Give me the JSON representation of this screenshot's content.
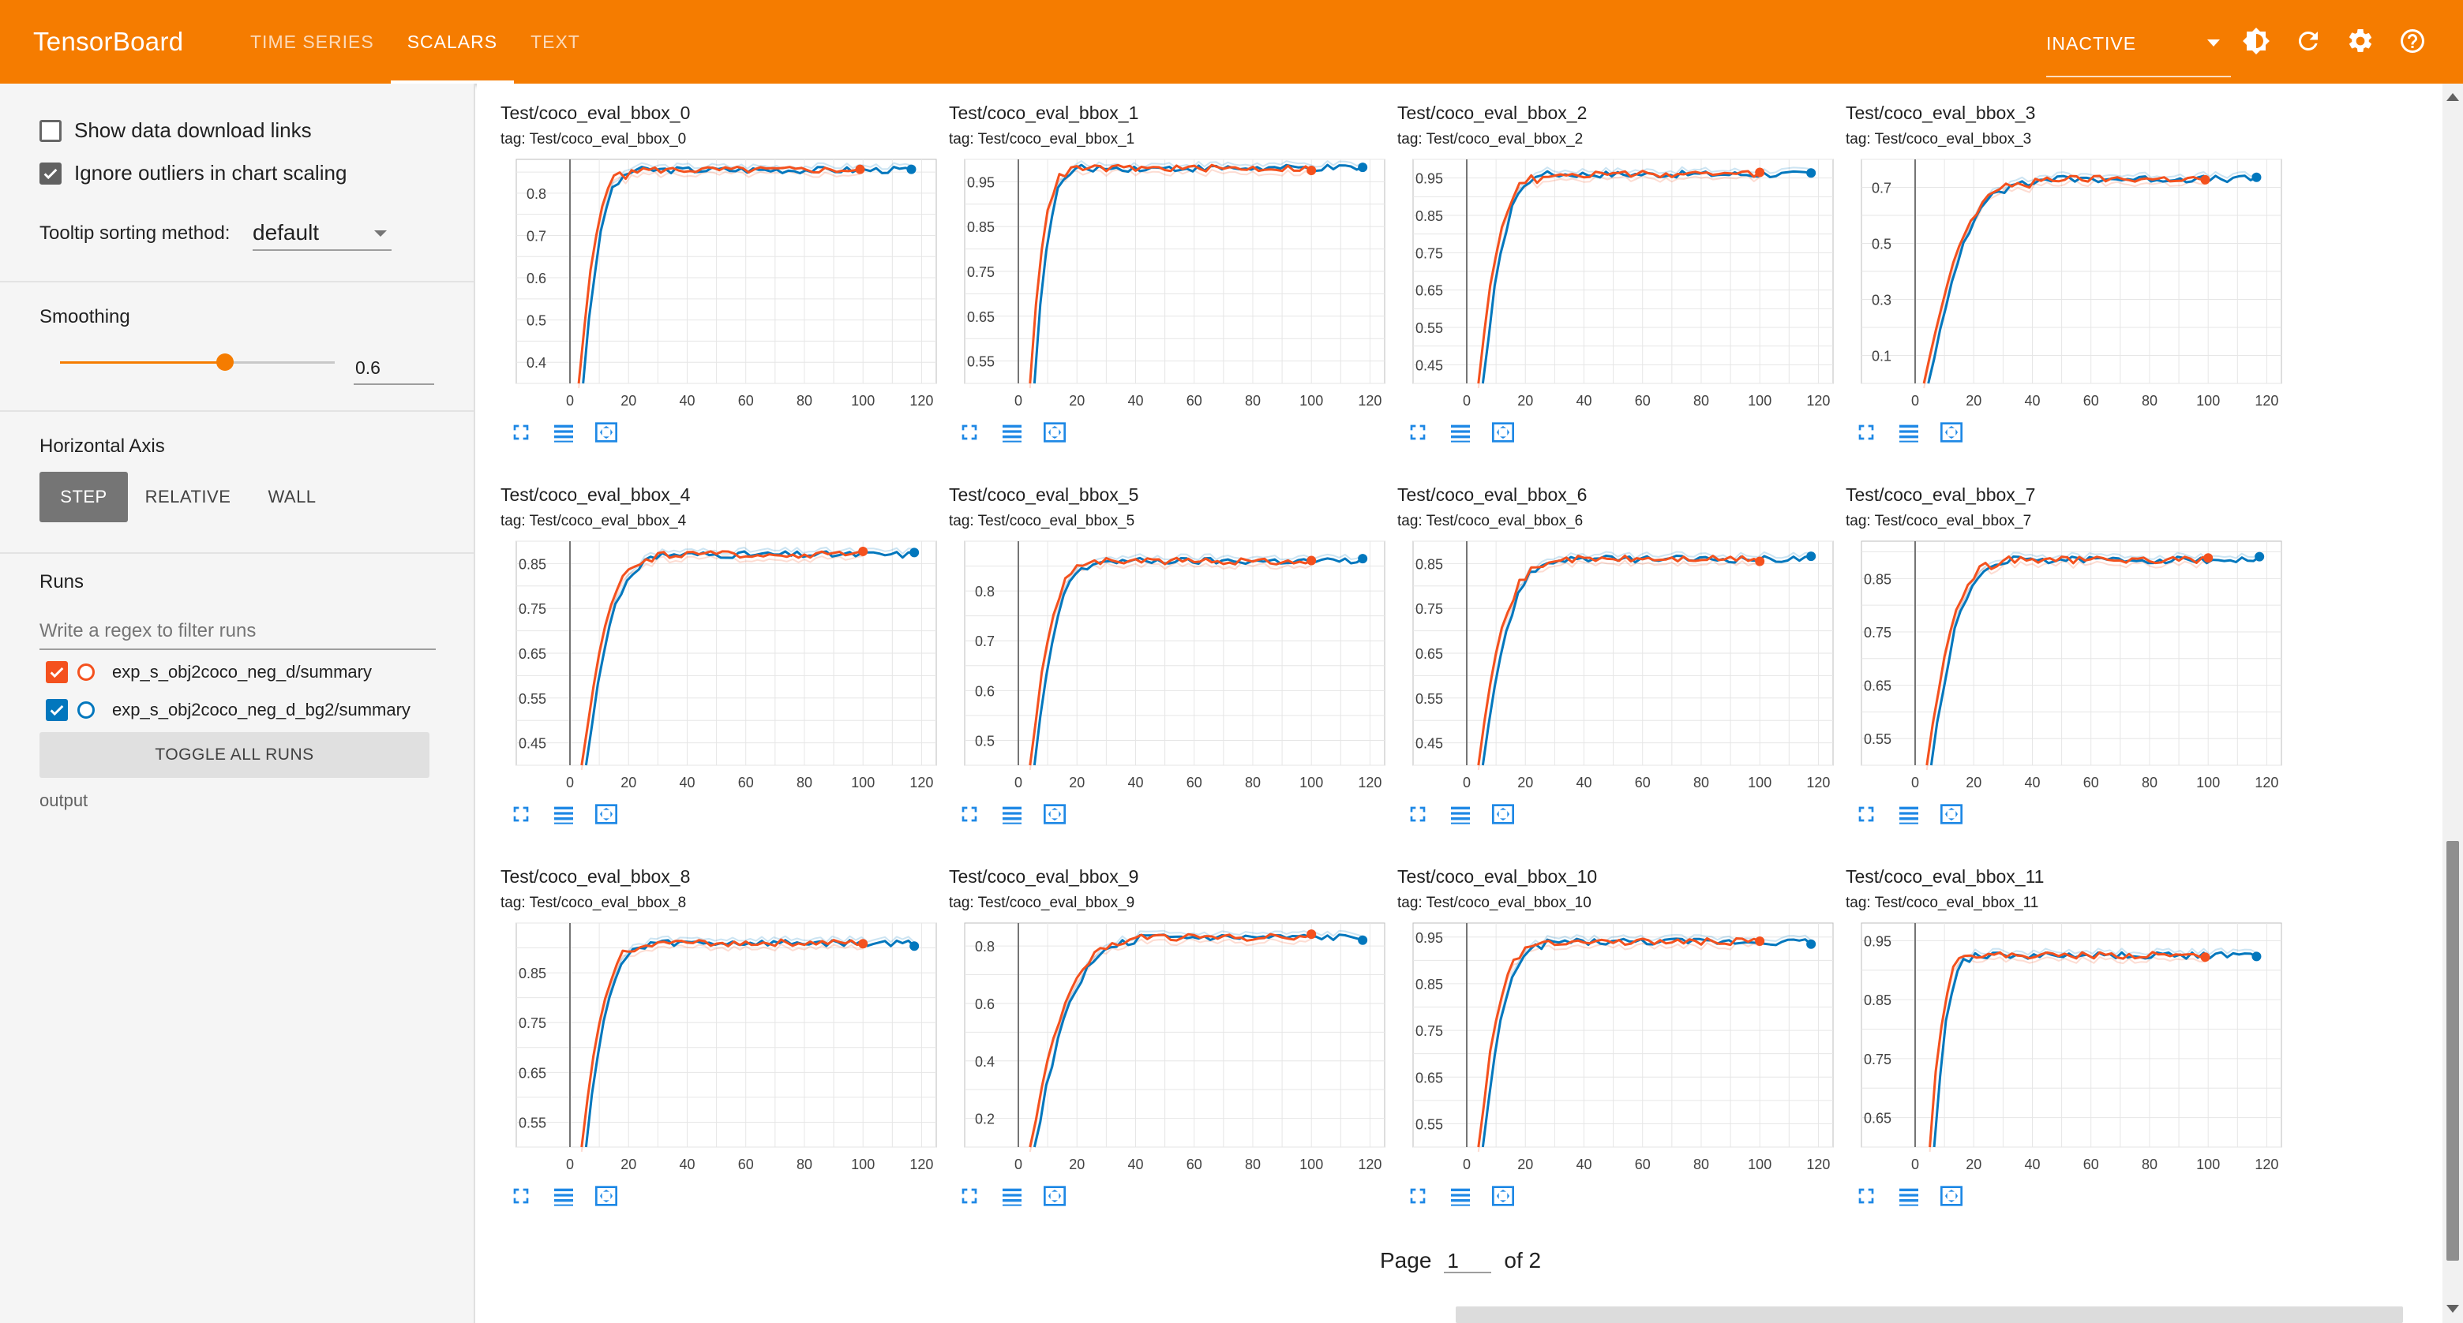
{
  "topbar": {
    "brand": "TensorBoard",
    "tabs": [
      {
        "label": "TIME SERIES",
        "active": false
      },
      {
        "label": "SCALARS",
        "active": true
      },
      {
        "label": "TEXT",
        "active": false
      }
    ],
    "plugin_select": "INACTIVE",
    "icons": [
      "theme-icon",
      "refresh-icon",
      "settings-icon",
      "help-icon"
    ]
  },
  "sidebar": {
    "show_download_links": {
      "label": "Show data download links",
      "checked": false
    },
    "ignore_outliers": {
      "label": "Ignore outliers in chart scaling",
      "checked": true
    },
    "tooltip_label": "Tooltip sorting method:",
    "tooltip_value": "default",
    "smoothing_label": "Smoothing",
    "smoothing_value": "0.6",
    "smoothing_fraction": 0.6,
    "horizontal_axis_label": "Horizontal Axis",
    "axis_options": [
      {
        "label": "STEP",
        "active": true
      },
      {
        "label": "RELATIVE",
        "active": false
      },
      {
        "label": "WALL",
        "active": false
      }
    ],
    "runs_label": "Runs",
    "runs_filter_placeholder": "Write a regex to filter runs",
    "runs": [
      {
        "name": "exp_s_obj2coco_neg_d/summary",
        "color": "#f4511e",
        "checked": true
      },
      {
        "name": "exp_s_obj2coco_neg_d_bg2/summary",
        "color": "#0277bd",
        "checked": true
      }
    ],
    "toggle_all": "TOGGLE ALL RUNS",
    "output_label": "output"
  },
  "colors": {
    "accent": "#f57c00",
    "run_orange": "#f4511e",
    "run_blue": "#0277bd"
  },
  "pager": {
    "label": "Page",
    "current": "1",
    "total_text": "of 2"
  },
  "chart_data": [
    {
      "type": "line",
      "title": "Test/coco_eval_bbox_0",
      "tag": "tag: Test/coco_eval_bbox_0",
      "x_ticks": [
        0,
        20,
        40,
        60,
        80,
        100,
        120
      ],
      "y_ticks": [
        "0.4",
        "0.5",
        "0.6",
        "0.7",
        "0.8"
      ],
      "ylim": [
        0.35,
        0.88
      ],
      "plateau": 0.855,
      "rise": [
        3,
        20
      ],
      "last_orange": 100,
      "last_blue": 118
    },
    {
      "type": "line",
      "title": "Test/coco_eval_bbox_1",
      "tag": "tag: Test/coco_eval_bbox_1",
      "x_ticks": [
        0,
        20,
        40,
        60,
        80,
        100,
        120
      ],
      "y_ticks": [
        "0.55",
        "0.65",
        "0.75",
        "0.85",
        "0.95"
      ],
      "ylim": [
        0.5,
        1.0
      ],
      "plateau": 0.98,
      "rise": [
        4,
        18
      ],
      "last_orange": 100,
      "last_blue": 118
    },
    {
      "type": "line",
      "title": "Test/coco_eval_bbox_2",
      "tag": "tag: Test/coco_eval_bbox_2",
      "x_ticks": [
        0,
        20,
        40,
        60,
        80,
        100,
        120
      ],
      "y_ticks": [
        "0.45",
        "0.55",
        "0.65",
        "0.75",
        "0.85",
        "0.95"
      ],
      "ylim": [
        0.4,
        1.0
      ],
      "plateau": 0.96,
      "rise": [
        4,
        25
      ],
      "last_orange": 100,
      "last_blue": 118
    },
    {
      "type": "line",
      "title": "Test/coco_eval_bbox_3",
      "tag": "tag: Test/coco_eval_bbox_3",
      "x_ticks": [
        0,
        20,
        40,
        60,
        80,
        100,
        120
      ],
      "y_ticks": [
        "0.1",
        "0.3",
        "0.5",
        "0.7"
      ],
      "ylim": [
        0.0,
        0.8
      ],
      "plateau": 0.73,
      "rise": [
        3,
        40
      ],
      "last_orange": 100,
      "last_blue": 118
    },
    {
      "type": "line",
      "title": "Test/coco_eval_bbox_4",
      "tag": "tag: Test/coco_eval_bbox_4",
      "x_ticks": [
        0,
        20,
        40,
        60,
        80,
        100,
        120
      ],
      "y_ticks": [
        "0.45",
        "0.55",
        "0.65",
        "0.75",
        "0.85"
      ],
      "ylim": [
        0.4,
        0.9
      ],
      "plateau": 0.87,
      "rise": [
        4,
        30
      ],
      "last_orange": 100,
      "last_blue": 118
    },
    {
      "type": "line",
      "title": "Test/coco_eval_bbox_5",
      "tag": "tag: Test/coco_eval_bbox_5",
      "x_ticks": [
        0,
        20,
        40,
        60,
        80,
        100,
        120
      ],
      "y_ticks": [
        "0.5",
        "0.6",
        "0.7",
        "0.8"
      ],
      "ylim": [
        0.45,
        0.9
      ],
      "plateau": 0.86,
      "rise": [
        4,
        25
      ],
      "last_orange": 100,
      "last_blue": 118
    },
    {
      "type": "line",
      "title": "Test/coco_eval_bbox_6",
      "tag": "tag: Test/coco_eval_bbox_6",
      "x_ticks": [
        0,
        20,
        40,
        60,
        80,
        100,
        120
      ],
      "y_ticks": [
        "0.45",
        "0.55",
        "0.65",
        "0.75",
        "0.85"
      ],
      "ylim": [
        0.4,
        0.9
      ],
      "plateau": 0.86,
      "rise": [
        4,
        30
      ],
      "last_orange": 100,
      "last_blue": 118
    },
    {
      "type": "line",
      "title": "Test/coco_eval_bbox_7",
      "tag": "tag: Test/coco_eval_bbox_7",
      "x_ticks": [
        0,
        20,
        40,
        60,
        80,
        100,
        120
      ],
      "y_ticks": [
        "0.55",
        "0.65",
        "0.75",
        "0.85"
      ],
      "ylim": [
        0.5,
        0.92
      ],
      "plateau": 0.885,
      "rise": [
        4,
        30
      ],
      "last_orange": 100,
      "last_blue": 118
    },
    {
      "type": "line",
      "title": "Test/coco_eval_bbox_8",
      "tag": "tag: Test/coco_eval_bbox_8",
      "x_ticks": [
        0,
        20,
        40,
        60,
        80,
        100,
        120
      ],
      "y_ticks": [
        "0.55",
        "0.65",
        "0.75",
        "0.85"
      ],
      "ylim": [
        0.5,
        0.95
      ],
      "plateau": 0.91,
      "rise": [
        4,
        25
      ],
      "last_orange": 100,
      "last_blue": 118
    },
    {
      "type": "line",
      "title": "Test/coco_eval_bbox_9",
      "tag": "tag: Test/coco_eval_bbox_9",
      "x_ticks": [
        0,
        20,
        40,
        60,
        80,
        100,
        120
      ],
      "y_ticks": [
        "0.2",
        "0.4",
        "0.6",
        "0.8"
      ],
      "ylim": [
        0.1,
        0.88
      ],
      "plateau": 0.83,
      "rise": [
        4,
        40
      ],
      "last_orange": 100,
      "last_blue": 118
    },
    {
      "type": "line",
      "title": "Test/coco_eval_bbox_10",
      "tag": "tag: Test/coco_eval_bbox_10",
      "x_ticks": [
        0,
        20,
        40,
        60,
        80,
        100,
        120
      ],
      "y_ticks": [
        "0.55",
        "0.65",
        "0.75",
        "0.85",
        "0.95"
      ],
      "ylim": [
        0.5,
        0.98
      ],
      "plateau": 0.94,
      "rise": [
        4,
        25
      ],
      "last_orange": 100,
      "last_blue": 118
    },
    {
      "type": "line",
      "title": "Test/coco_eval_bbox_11",
      "tag": "tag: Test/coco_eval_bbox_11",
      "x_ticks": [
        0,
        20,
        40,
        60,
        80,
        100,
        120
      ],
      "y_ticks": [
        "0.65",
        "0.75",
        "0.85",
        "0.95"
      ],
      "ylim": [
        0.6,
        0.98
      ],
      "plateau": 0.925,
      "rise": [
        5,
        18
      ],
      "last_orange": 100,
      "last_blue": 118
    }
  ]
}
